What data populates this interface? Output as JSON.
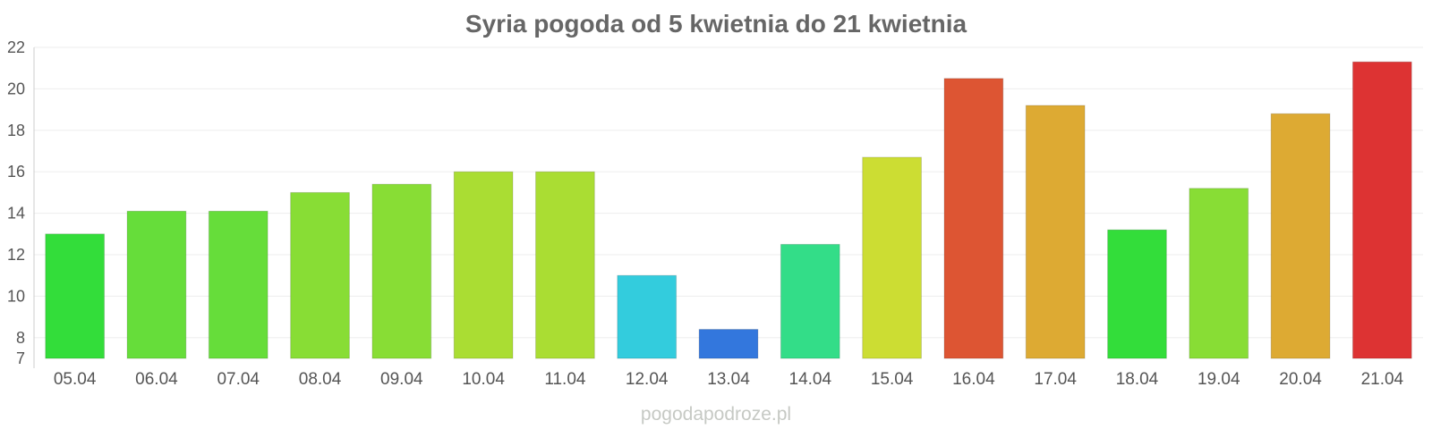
{
  "chart_data": {
    "type": "bar",
    "title": "Syria pogoda od 5 kwietnia do 21 kwietnia",
    "xlabel": "",
    "ylabel": "",
    "ylim": [
      7,
      22
    ],
    "yticks": [
      7,
      8,
      10,
      12,
      14,
      16,
      18,
      20,
      22
    ],
    "grid": true,
    "categories": [
      "05.04",
      "06.04",
      "07.04",
      "08.04",
      "09.04",
      "10.04",
      "11.04",
      "12.04",
      "13.04",
      "14.04",
      "15.04",
      "16.04",
      "17.04",
      "18.04",
      "19.04",
      "20.04",
      "21.04"
    ],
    "values": [
      13.0,
      14.1,
      14.1,
      15.0,
      15.4,
      16.0,
      16.0,
      11.0,
      8.4,
      12.5,
      16.7,
      20.5,
      19.2,
      13.2,
      15.2,
      18.8,
      21.3
    ],
    "colors": [
      "#33dd3a",
      "#66dd3a",
      "#66dd3a",
      "#88dd35",
      "#88dd35",
      "#aadd33",
      "#aadd33",
      "#33ccdd",
      "#3377dd",
      "#33dd88",
      "#ccdd33",
      "#dd5533",
      "#ddaa33",
      "#33dd3a",
      "#88dd35",
      "#ddaa33",
      "#dd3333"
    ]
  },
  "credit": "pogodapodroze.pl"
}
